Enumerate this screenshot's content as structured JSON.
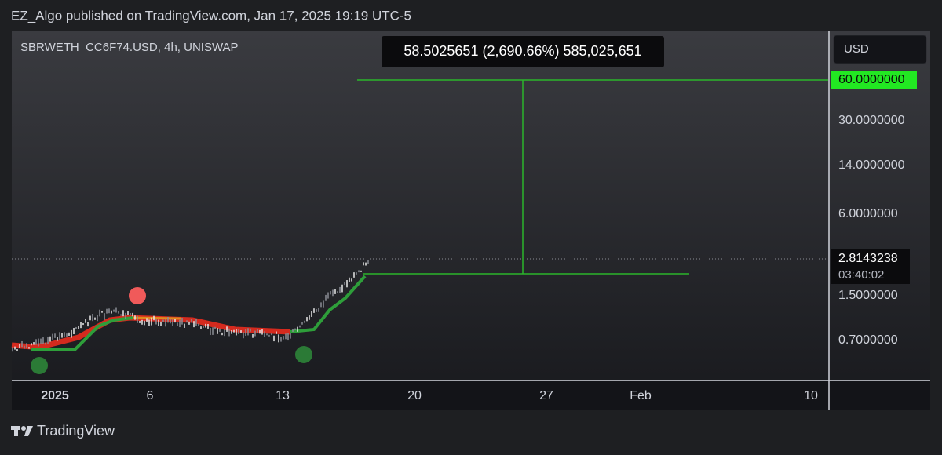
{
  "header": {
    "title": "EZ_Algo published on TradingView.com, Jan 17, 2025 19:19 UTC-5"
  },
  "chart": {
    "symbol": "SBRWETH_CC6F74.USD, 4h, UNISWAP",
    "measure": "58.5025651 (2,690.66%) 585,025,651",
    "currency": "USD",
    "price_scale": [
      "60.0000000",
      "30.0000000",
      "14.0000000",
      "6.0000000",
      "1.5000000",
      "0.7000000"
    ],
    "last_price": "2.8143238",
    "countdown": "03:40:02",
    "time_scale": [
      "2025",
      "6",
      "13",
      "20",
      "27",
      "Feb",
      "10"
    ]
  },
  "footer": {
    "brand": "TradingView"
  }
}
